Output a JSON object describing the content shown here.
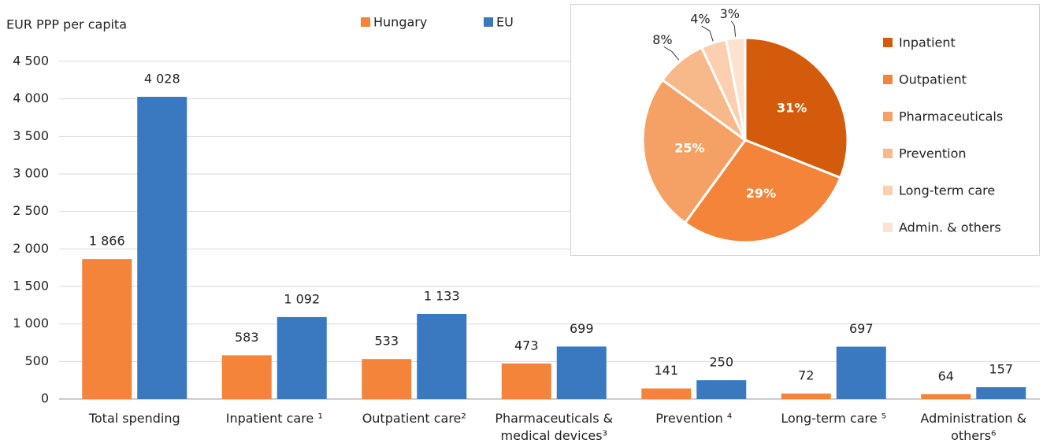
{
  "chart_data": [
    {
      "type": "bar",
      "y_label": "EUR PPP per capita",
      "categories": [
        "Total spending",
        "Inpatient care ¹",
        "Outpatient care²",
        "Pharmaceuticals & medical devices³",
        "Prevention ⁴",
        "Long-term care ⁵",
        "Administration & others⁶"
      ],
      "series": [
        {
          "name": "Hungary",
          "color": "#f4843a",
          "values": [
            1866,
            583,
            533,
            473,
            141,
            72,
            64
          ],
          "value_labels": [
            "1 866",
            "583",
            "533",
            "473",
            "141",
            "72",
            "64"
          ]
        },
        {
          "name": "EU",
          "color": "#3a78bf",
          "values": [
            4028,
            1092,
            1133,
            699,
            250,
            697,
            157
          ],
          "value_labels": [
            "4 028",
            "1 092",
            "1 133",
            "699",
            "250",
            "697",
            "157"
          ]
        }
      ],
      "ylim": [
        0,
        4500
      ],
      "yticks": [
        0,
        500,
        {
          "value": 1000,
          "label": "1 000"
        },
        {
          "value": 1500,
          "label": "1 500"
        },
        {
          "value": 2000,
          "label": "2 000"
        },
        {
          "value": 2500,
          "label": "2 500"
        },
        {
          "value": 3000,
          "label": "3 000"
        },
        {
          "value": 3500,
          "label": "3 500"
        },
        {
          "value": 4000,
          "label": "4 000"
        },
        {
          "value": 4500,
          "label": "4 500"
        }
      ],
      "grid": true
    },
    {
      "type": "pie",
      "categories": [
        "Inpatient",
        "Outpatient",
        "Pharmaceuticals",
        "Prevention",
        "Long-term care",
        "Admin. & others"
      ],
      "values": [
        31,
        29,
        25,
        8,
        4,
        3
      ],
      "value_labels": [
        "31%",
        "29%",
        "25%",
        "8%",
        "4%",
        "3%"
      ],
      "colors": [
        "#d35b0b",
        "#f3843a",
        "#f5a165",
        "#f8b98a",
        "#fbcfb0",
        "#fde2cf"
      ]
    }
  ]
}
